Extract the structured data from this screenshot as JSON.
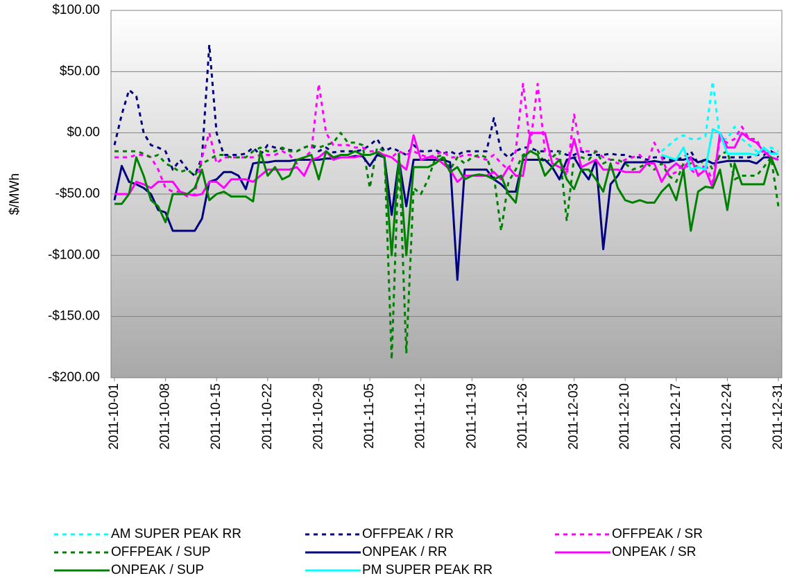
{
  "chart_data": {
    "type": "line",
    "ylabel": "$/MWh",
    "ylim": [
      -200,
      100
    ],
    "yticks": [
      {
        "value": 100,
        "label": "$100.00"
      },
      {
        "value": 50,
        "label": "$50.00"
      },
      {
        "value": 0,
        "label": "$0.00"
      },
      {
        "value": -50,
        "label": "-$50.00"
      },
      {
        "value": -100,
        "label": "-$100.00"
      },
      {
        "value": -150,
        "label": "-$150.00"
      },
      {
        "value": -200,
        "label": "-$200.00"
      }
    ],
    "grid": true,
    "xlim": [
      "2011-10-01",
      "2011-12-31"
    ],
    "xticks": [
      "2011-10-01",
      "2011-10-08",
      "2011-10-15",
      "2011-10-22",
      "2011-10-29",
      "2011-11-05",
      "2011-11-12",
      "2011-11-19",
      "2011-11-26",
      "2011-12-03",
      "2011-12-10",
      "2011-12-17",
      "2011-12-24",
      "2011-12-31"
    ],
    "x": [
      "2011-10-01",
      "2011-10-02",
      "2011-10-03",
      "2011-10-04",
      "2011-10-05",
      "2011-10-06",
      "2011-10-07",
      "2011-10-08",
      "2011-10-09",
      "2011-10-10",
      "2011-10-11",
      "2011-10-12",
      "2011-10-13",
      "2011-10-14",
      "2011-10-15",
      "2011-10-16",
      "2011-10-17",
      "2011-10-18",
      "2011-10-19",
      "2011-10-20",
      "2011-10-21",
      "2011-10-22",
      "2011-10-23",
      "2011-10-24",
      "2011-10-25",
      "2011-10-26",
      "2011-10-27",
      "2011-10-28",
      "2011-10-29",
      "2011-10-30",
      "2011-10-31",
      "2011-11-01",
      "2011-11-02",
      "2011-11-03",
      "2011-11-04",
      "2011-11-05",
      "2011-11-06",
      "2011-11-07",
      "2011-11-08",
      "2011-11-09",
      "2011-11-10",
      "2011-11-11",
      "2011-11-12",
      "2011-11-13",
      "2011-11-14",
      "2011-11-15",
      "2011-11-16",
      "2011-11-17",
      "2011-11-18",
      "2011-11-19",
      "2011-11-20",
      "2011-11-21",
      "2011-11-22",
      "2011-11-23",
      "2011-11-24",
      "2011-11-25",
      "2011-11-26",
      "2011-11-27",
      "2011-11-28",
      "2011-11-29",
      "2011-11-30",
      "2011-12-01",
      "2011-12-02",
      "2011-12-03",
      "2011-12-04",
      "2011-12-05",
      "2011-12-06",
      "2011-12-07",
      "2011-12-08",
      "2011-12-09",
      "2011-12-10",
      "2011-12-11",
      "2011-12-12",
      "2011-12-13",
      "2011-12-14",
      "2011-12-15",
      "2011-12-16",
      "2011-12-17",
      "2011-12-18",
      "2011-12-19",
      "2011-12-20",
      "2011-12-21",
      "2011-12-22",
      "2011-12-23",
      "2011-12-24",
      "2011-12-25",
      "2011-12-26",
      "2011-12-27",
      "2011-12-28",
      "2011-12-29",
      "2011-12-30",
      "2011-12-31"
    ],
    "series": [
      {
        "name": "AM SUPER PEAK RR",
        "color": "#00ffff",
        "dash": true,
        "values": [
          null,
          null,
          null,
          null,
          null,
          null,
          null,
          null,
          null,
          null,
          null,
          null,
          null,
          null,
          null,
          null,
          null,
          null,
          null,
          null,
          null,
          null,
          null,
          null,
          null,
          null,
          null,
          null,
          null,
          null,
          null,
          null,
          null,
          null,
          null,
          null,
          null,
          null,
          null,
          null,
          null,
          null,
          null,
          null,
          null,
          null,
          null,
          null,
          null,
          null,
          null,
          null,
          null,
          null,
          null,
          null,
          null,
          null,
          null,
          null,
          null,
          null,
          null,
          null,
          null,
          null,
          null,
          null,
          null,
          null,
          null,
          null,
          null,
          null,
          null,
          -15,
          -10,
          -5,
          -2,
          -5,
          -5,
          -3,
          42,
          -5,
          -5,
          5,
          -5,
          -10,
          -15,
          -15,
          -12,
          -15
        ]
      },
      {
        "name": "OFFPEAK / RR",
        "color": "#000080",
        "dash": true,
        "values": [
          -10,
          15,
          35,
          30,
          0,
          -10,
          -12,
          -15,
          -30,
          -22,
          -30,
          -35,
          -20,
          72,
          0,
          -18,
          -18,
          -18,
          -17,
          -12,
          -18,
          -10,
          -12,
          -13,
          -14,
          -15,
          -12,
          -10,
          -15,
          -12,
          -16,
          -15,
          -15,
          -15,
          -14,
          -10,
          -5,
          -15,
          -12,
          -15,
          -18,
          -10,
          -15,
          -15,
          -14,
          -17,
          -15,
          -18,
          -15,
          -15,
          -15,
          -15,
          12,
          -15,
          -20,
          -15,
          -12,
          -12,
          -15,
          -15,
          -15,
          -15,
          -18,
          -18,
          -15,
          -18,
          -18,
          -18,
          -17,
          -18,
          -18,
          -20,
          -20,
          -22,
          -20,
          -20,
          -22,
          -22,
          -20,
          -15,
          -25,
          -22,
          -25,
          -20,
          -20,
          -20,
          -20,
          -20,
          -18,
          -18,
          -15,
          -20
        ]
      },
      {
        "name": "OFFPEAK / SR",
        "color": "#ff00ff",
        "dash": true,
        "values": [
          -20,
          -20,
          -20,
          -18,
          -18,
          -20,
          -30,
          -45,
          -48,
          -48,
          -52,
          -50,
          -20,
          0,
          -25,
          -20,
          -20,
          -20,
          -20,
          -20,
          -18,
          -18,
          -18,
          -15,
          -18,
          -25,
          -20,
          -15,
          40,
          0,
          -10,
          -10,
          -10,
          -12,
          -12,
          -15,
          -15,
          -18,
          -20,
          -15,
          -18,
          -15,
          -18,
          -20,
          -18,
          -15,
          -20,
          -20,
          -18,
          -18,
          -20,
          -22,
          -18,
          -25,
          -30,
          -15,
          40,
          -10,
          40,
          -15,
          -20,
          -22,
          -35,
          15,
          -15,
          -15,
          -15,
          -20,
          -22,
          -25,
          -22,
          -20,
          -18,
          -25,
          -8,
          -20,
          -35,
          -32,
          -25,
          -30,
          -35,
          -25,
          -40,
          -5,
          -8,
          -5,
          5,
          -5,
          -5,
          -18,
          -15,
          -18
        ]
      },
      {
        "name": "OFFPEAK / SUP",
        "color": "#008000",
        "dash": true,
        "values": [
          -15,
          -15,
          -15,
          -15,
          -17,
          -20,
          -18,
          -25,
          -28,
          -32,
          -30,
          -35,
          -25,
          -22,
          -18,
          -18,
          -20,
          -20,
          -20,
          -15,
          -12,
          -15,
          -15,
          -12,
          -15,
          -15,
          -12,
          -10,
          -12,
          -10,
          -8,
          0,
          -8,
          -8,
          -10,
          -45,
          -12,
          -15,
          -185,
          -15,
          -180,
          -45,
          -50,
          -38,
          -20,
          -18,
          -30,
          -20,
          -25,
          -20,
          -18,
          -20,
          -35,
          -80,
          -40,
          -30,
          -18,
          -15,
          -15,
          -25,
          -20,
          -15,
          -72,
          -20,
          -20,
          -22,
          -15,
          -25,
          -22,
          -22,
          -25,
          -30,
          -28,
          -25,
          -30,
          -25,
          -35,
          -40,
          -25,
          -25,
          -28,
          -20,
          -30,
          -18,
          -15,
          -38,
          -35,
          -35,
          -35,
          -28,
          -20,
          -60
        ]
      },
      {
        "name": "ONPEAK / RR",
        "color": "#000080",
        "dash": false,
        "values": [
          -55,
          -27,
          -40,
          -42,
          -45,
          -50,
          -63,
          -65,
          -80,
          -80,
          -80,
          -80,
          -70,
          -40,
          -38,
          -32,
          -32,
          -35,
          -46,
          -25,
          -24,
          -24,
          -23,
          -23,
          -23,
          -22,
          -22,
          -22,
          -22,
          -21,
          -21,
          -20,
          -20,
          -19,
          -19,
          -27,
          -18,
          -20,
          -67,
          -22,
          -60,
          -22,
          -22,
          -22,
          -22,
          -22,
          -24,
          -120,
          -30,
          -30,
          -30,
          -30,
          -38,
          -42,
          -48,
          -48,
          -22,
          -22,
          -22,
          -22,
          -28,
          -38,
          -22,
          -20,
          -30,
          -38,
          -22,
          -95,
          -42,
          -35,
          -24,
          -24,
          -24,
          -24,
          -23,
          -24,
          -24,
          -22,
          -22,
          -20,
          -24,
          -22,
          -25,
          -24,
          -23,
          -23,
          -23,
          -23,
          -25,
          -20,
          -20,
          -22
        ]
      },
      {
        "name": "ONPEAK / SR",
        "color": "#ff00ff",
        "dash": false,
        "values": [
          -50,
          -50,
          -50,
          -40,
          -42,
          -45,
          -40,
          -40,
          -40,
          -48,
          -50,
          -51,
          -50,
          -40,
          -40,
          -45,
          -38,
          -38,
          -38,
          -40,
          -35,
          -30,
          -30,
          -30,
          -30,
          -28,
          -35,
          -22,
          -20,
          -15,
          -22,
          -20,
          -20,
          -20,
          -18,
          -18,
          -16,
          -18,
          -20,
          -25,
          -30,
          -2,
          -22,
          -20,
          -20,
          -25,
          -30,
          -40,
          -35,
          -35,
          -35,
          -35,
          -32,
          -38,
          -28,
          -35,
          -35,
          0,
          0,
          0,
          -25,
          -28,
          -30,
          -5,
          -28,
          -25,
          -22,
          -30,
          -30,
          -30,
          -32,
          -32,
          -32,
          -25,
          -25,
          -40,
          -30,
          -25,
          -30,
          -20,
          -35,
          -30,
          -45,
          0,
          -12,
          -12,
          0,
          -5,
          -8,
          -15,
          -20,
          -22
        ]
      },
      {
        "name": "ONPEAK / SUP",
        "color": "#008000",
        "dash": false,
        "values": [
          -58,
          -58,
          -50,
          -20,
          -35,
          -55,
          -60,
          -73,
          -50,
          -50,
          -50,
          -45,
          -30,
          -55,
          -50,
          -48,
          -52,
          -52,
          -52,
          -56,
          -15,
          -35,
          -28,
          -38,
          -35,
          -22,
          -20,
          -18,
          -38,
          -15,
          -20,
          -18,
          -18,
          -15,
          -18,
          -18,
          -16,
          -20,
          -100,
          -20,
          -100,
          -28,
          -28,
          -28,
          -25,
          -20,
          -32,
          -28,
          -38,
          -35,
          -34,
          -35,
          -38,
          -35,
          -50,
          -57,
          -20,
          -15,
          -18,
          -35,
          -28,
          -22,
          -38,
          -46,
          -30,
          -30,
          -38,
          -48,
          -25,
          -45,
          -55,
          -57,
          -55,
          -57,
          -57,
          -48,
          -42,
          -55,
          -30,
          -80,
          -48,
          -44,
          -45,
          -30,
          -63,
          -25,
          -42,
          -42,
          -42,
          -42,
          -20,
          -35
        ]
      },
      {
        "name": "PM SUPER PEAK RR",
        "color": "#00ffff",
        "dash": false,
        "values": [
          null,
          null,
          null,
          null,
          null,
          null,
          null,
          null,
          null,
          null,
          null,
          null,
          null,
          null,
          null,
          null,
          null,
          null,
          null,
          null,
          null,
          null,
          null,
          null,
          null,
          null,
          null,
          null,
          null,
          null,
          null,
          null,
          null,
          null,
          null,
          null,
          null,
          null,
          null,
          null,
          null,
          null,
          null,
          null,
          null,
          null,
          null,
          null,
          null,
          null,
          null,
          null,
          null,
          null,
          null,
          null,
          null,
          null,
          null,
          null,
          null,
          null,
          null,
          null,
          null,
          null,
          null,
          null,
          null,
          null,
          null,
          null,
          null,
          null,
          null,
          -18,
          -20,
          -22,
          -12,
          -30,
          -28,
          -30,
          3,
          0,
          -17,
          -17,
          -17,
          -17,
          -18,
          -12,
          -17,
          -17
        ]
      }
    ]
  }
}
